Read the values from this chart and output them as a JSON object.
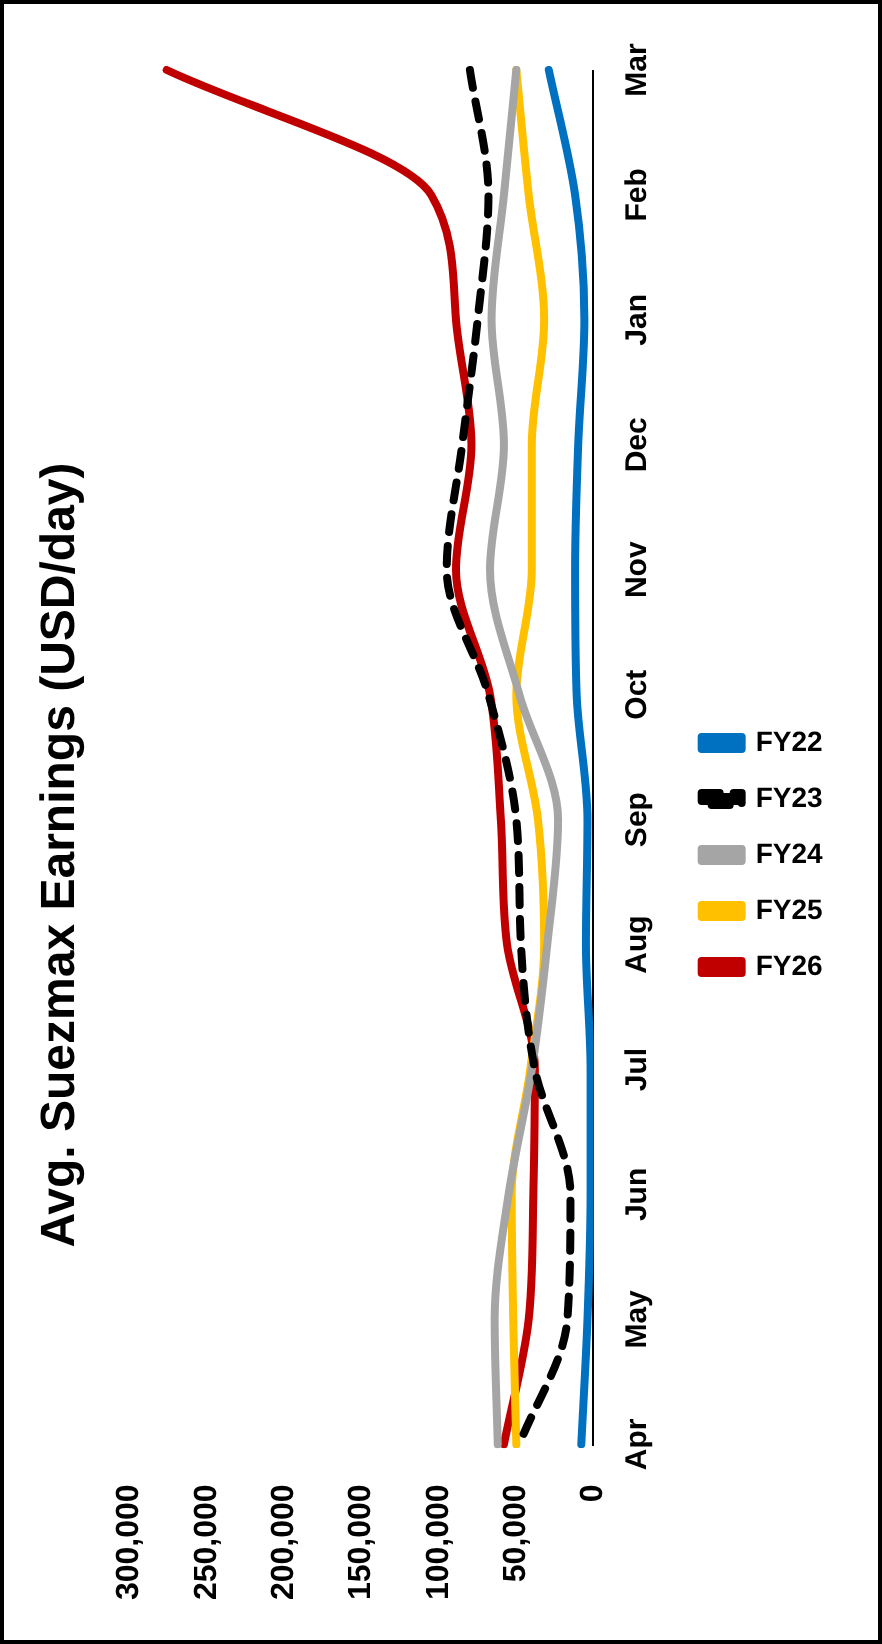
{
  "chart_data": {
    "type": "line",
    "title": "Avg. Suezmax Earnings (USD/day)",
    "orientation": "horizontal",
    "categories": [
      "Mar",
      "Feb",
      "Jan",
      "Dec",
      "Nov",
      "Oct",
      "Sep",
      "Aug",
      "Jul",
      "Jun",
      "May",
      "Apr"
    ],
    "series": [
      {
        "name": "FY22",
        "color": "#0070c0",
        "values": [
          29000,
          12000,
          6000,
          10000,
          12000,
          11000,
          4000,
          5000,
          2000,
          2000,
          4000,
          8000
        ]
      },
      {
        "name": "FY23",
        "color": "#000000",
        "line_style": "dashed",
        "values": [
          80000,
          68000,
          75000,
          85000,
          95000,
          68000,
          50000,
          47000,
          38000,
          15000,
          17000,
          48000
        ]
      },
      {
        "name": "FY24",
        "color": "#a5a5a5",
        "values": [
          50000,
          58000,
          66000,
          58000,
          67000,
          48000,
          23000,
          30000,
          40000,
          55000,
          64000,
          62000
        ]
      },
      {
        "name": "FY25",
        "color": "#ffc000",
        "values": [
          50000,
          42000,
          32000,
          40000,
          40000,
          50000,
          36000,
          32000,
          41000,
          53000,
          52000,
          50000
        ]
      },
      {
        "name": "FY26",
        "color": "#c00000",
        "values": [
          276000,
          105000,
          89000,
          79000,
          89000,
          67000,
          60000,
          56000,
          38000,
          39000,
          42000,
          58000
        ]
      }
    ],
    "xlim": [
      300000,
      0
    ],
    "xticks": [
      0,
      {
        "value": 50000,
        "label": "50,000"
      },
      {
        "value": 100000,
        "label": "100,000"
      },
      {
        "value": 150000,
        "label": "150,000"
      },
      {
        "value": 200000,
        "label": "200,000"
      },
      {
        "value": 250000,
        "label": "250,000"
      },
      {
        "value": 300000,
        "label": "300,000"
      }
    ],
    "grid": false,
    "legend": "right",
    "marker": "none",
    "line_style": "solid"
  }
}
